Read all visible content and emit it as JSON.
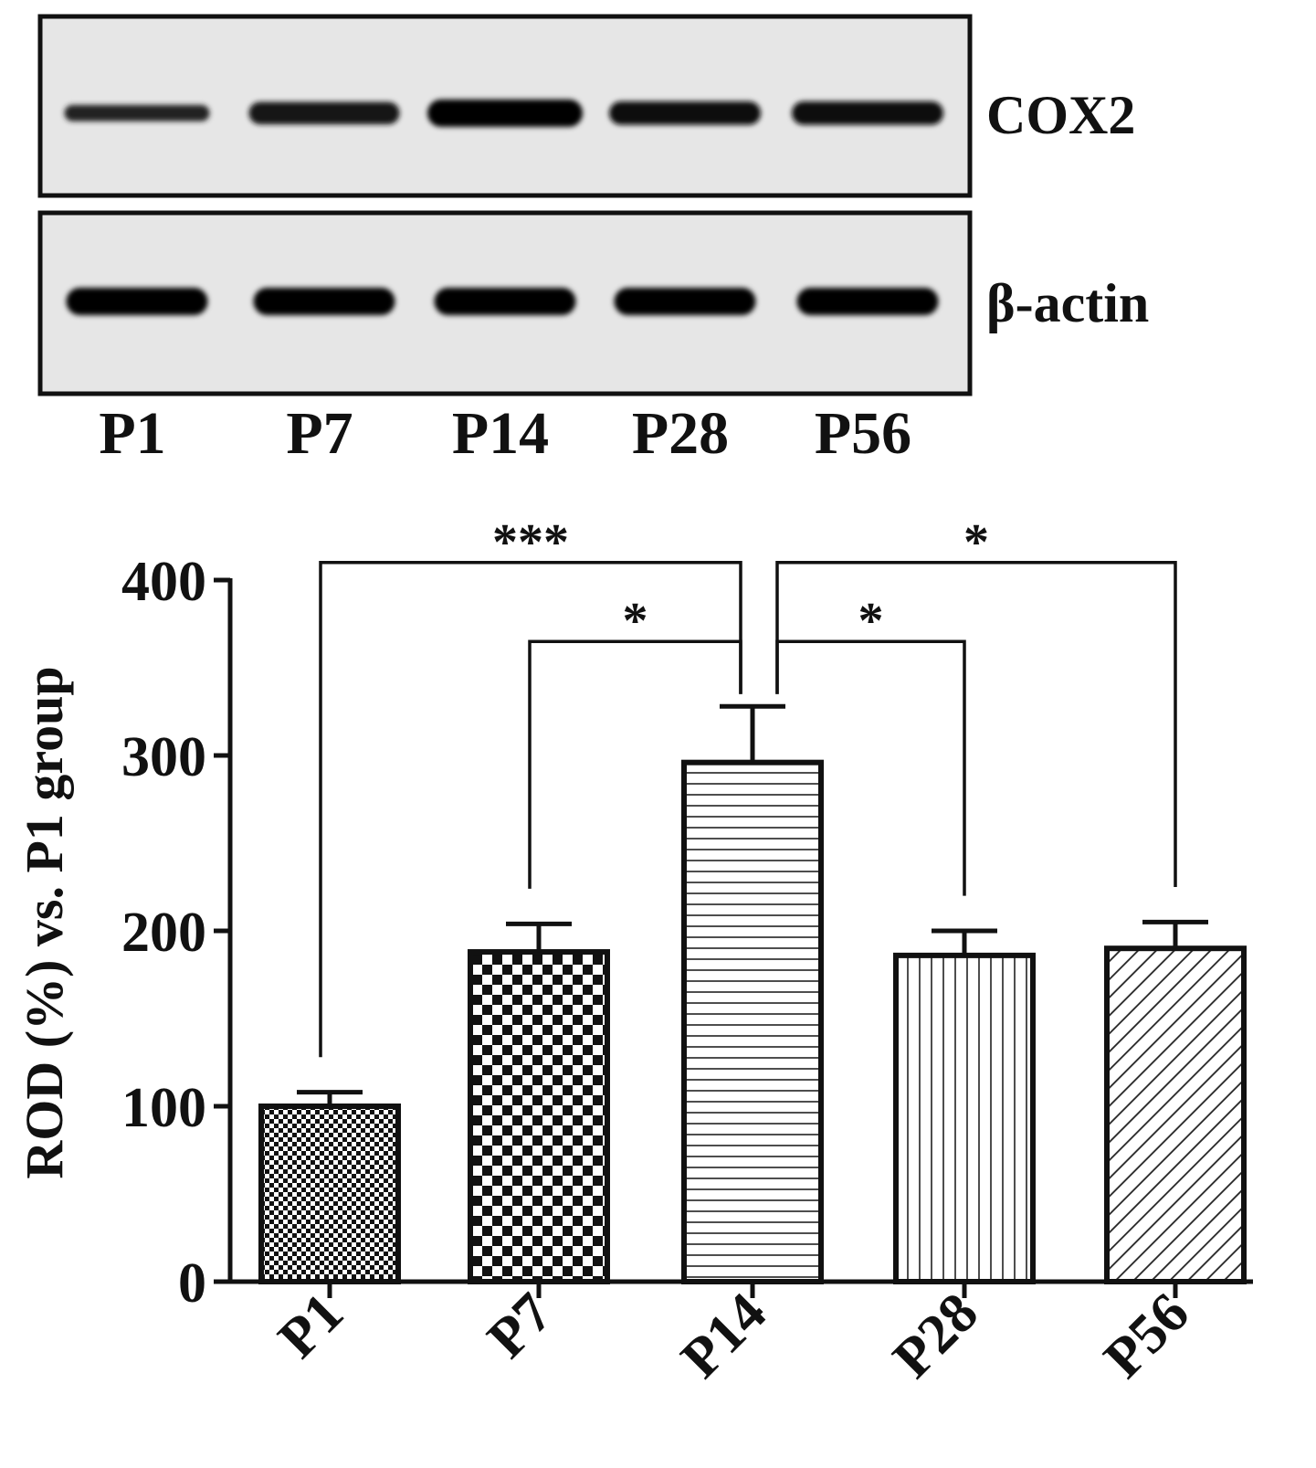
{
  "blot": {
    "lanes": [
      "P1",
      "P7",
      "P14",
      "P28",
      "P56"
    ],
    "rows": [
      {
        "label": "COX2",
        "intensity": [
          0.45,
          0.75,
          1.0,
          0.8,
          0.8
        ]
      },
      {
        "label": "β-actin",
        "intensity": [
          1.0,
          1.0,
          1.0,
          1.0,
          1.0
        ]
      }
    ]
  },
  "chart_data": {
    "type": "bar",
    "categories": [
      "P1",
      "P7",
      "P14",
      "P28",
      "P56"
    ],
    "values": [
      100,
      188,
      296,
      186,
      190
    ],
    "errors": [
      8,
      16,
      32,
      14,
      15
    ],
    "ylabel": "ROD (%) vs. P1 group",
    "ylim": [
      0,
      400
    ],
    "yticks": [
      0,
      100,
      200,
      300,
      400
    ],
    "patterns": [
      "fine-dots",
      "checker",
      "horizontal-lines",
      "vertical-lines",
      "diagonal-lines"
    ],
    "significance": [
      {
        "from": "P1",
        "to": "P14",
        "label": "***"
      },
      {
        "from": "P7",
        "to": "P14",
        "label": "*"
      },
      {
        "from": "P14",
        "to": "P28",
        "label": "*"
      },
      {
        "from": "P14",
        "to": "P56",
        "label": "*"
      }
    ]
  }
}
